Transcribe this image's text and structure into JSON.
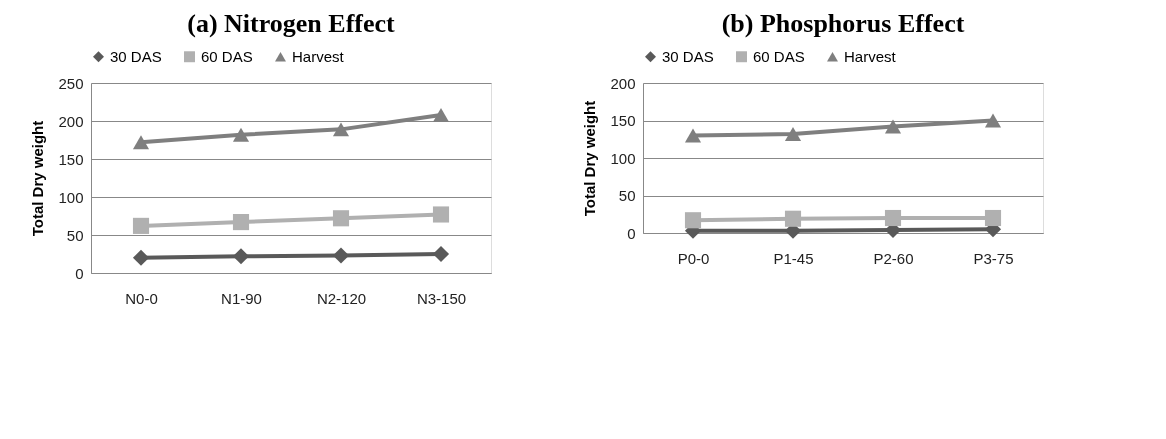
{
  "chart_data": [
    {
      "type": "line",
      "title": "(a) Nitrogen Effect",
      "ylabel": "Total Dry weight",
      "categories": [
        "N0-0",
        "N1-90",
        "N2-120",
        "N3-150"
      ],
      "ylim": [
        0,
        250
      ],
      "yticks": [
        0,
        50,
        100,
        150,
        200,
        250
      ],
      "grid": "y",
      "legend": "top",
      "line_style": "solid",
      "series": [
        {
          "name": "30 DAS",
          "color": "#595959",
          "marker": "diamond",
          "values": [
            20,
            22,
            23,
            25
          ]
        },
        {
          "name": "60 DAS",
          "color": "#b0b0b0",
          "marker": "square",
          "values": [
            62,
            67,
            72,
            77
          ]
        },
        {
          "name": "Harvest",
          "color": "#7f7f7f",
          "marker": "triangle",
          "values": [
            172,
            182,
            189,
            208
          ]
        }
      ]
    },
    {
      "type": "line",
      "title": "(b) Phosphorus Effect",
      "ylabel": "Total Dry weight",
      "categories": [
        "P0-0",
        "P1-45",
        "P2-60",
        "P3-75"
      ],
      "ylim": [
        0,
        200
      ],
      "yticks": [
        0,
        50,
        100,
        150,
        200
      ],
      "grid": "y",
      "legend": "top",
      "line_style": "solid",
      "series": [
        {
          "name": "30 DAS",
          "color": "#595959",
          "marker": "diamond",
          "values": [
            3,
            3,
            4,
            5
          ]
        },
        {
          "name": "60 DAS",
          "color": "#b0b0b0",
          "marker": "square",
          "values": [
            17,
            19,
            20,
            20
          ]
        },
        {
          "name": "Harvest",
          "color": "#7f7f7f",
          "marker": "triangle",
          "values": [
            130,
            132,
            142,
            150
          ]
        }
      ]
    }
  ]
}
